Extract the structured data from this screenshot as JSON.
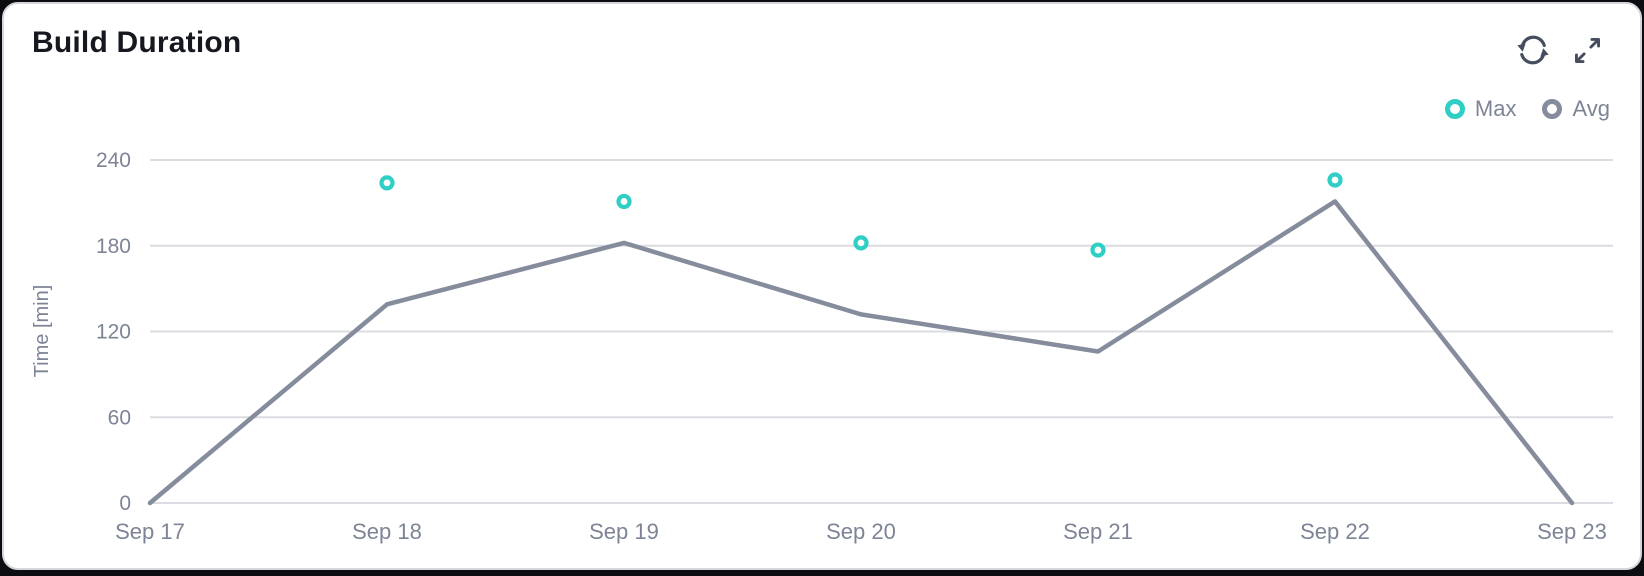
{
  "page": {
    "background": "#0b0d10"
  },
  "card": {
    "title": "Build Duration",
    "background": "#ffffff",
    "border_color": "#d5d7dc"
  },
  "toolbar": {
    "icon_color": "#454d5e",
    "refresh_icon": "refresh-icon",
    "expand_icon": "expand-icon"
  },
  "chart_data": {
    "type": "line",
    "title": "Build Duration",
    "xlabel": "",
    "ylabel": "Time [min]",
    "categories": [
      "Sep 17",
      "Sep 18",
      "Sep 19",
      "Sep 20",
      "Sep 21",
      "Sep 22",
      "Sep 23"
    ],
    "yticks": [
      0,
      60,
      120,
      180,
      240
    ],
    "ylim": [
      0,
      252
    ],
    "grid": "horizontal",
    "legend_position": "top-right",
    "series": [
      {
        "name": "Max",
        "type": "scatter",
        "color": "#2fcfc6",
        "values": [
          null,
          224,
          211,
          182,
          177,
          226,
          null
        ]
      },
      {
        "name": "Avg",
        "type": "line",
        "color": "#858c9c",
        "values": [
          0,
          139,
          182,
          132,
          106,
          211,
          0
        ]
      }
    ],
    "colors": {
      "grid": "#dbdce1",
      "axis_text": "#7d8495",
      "marker_fill": "#ffffff"
    }
  }
}
